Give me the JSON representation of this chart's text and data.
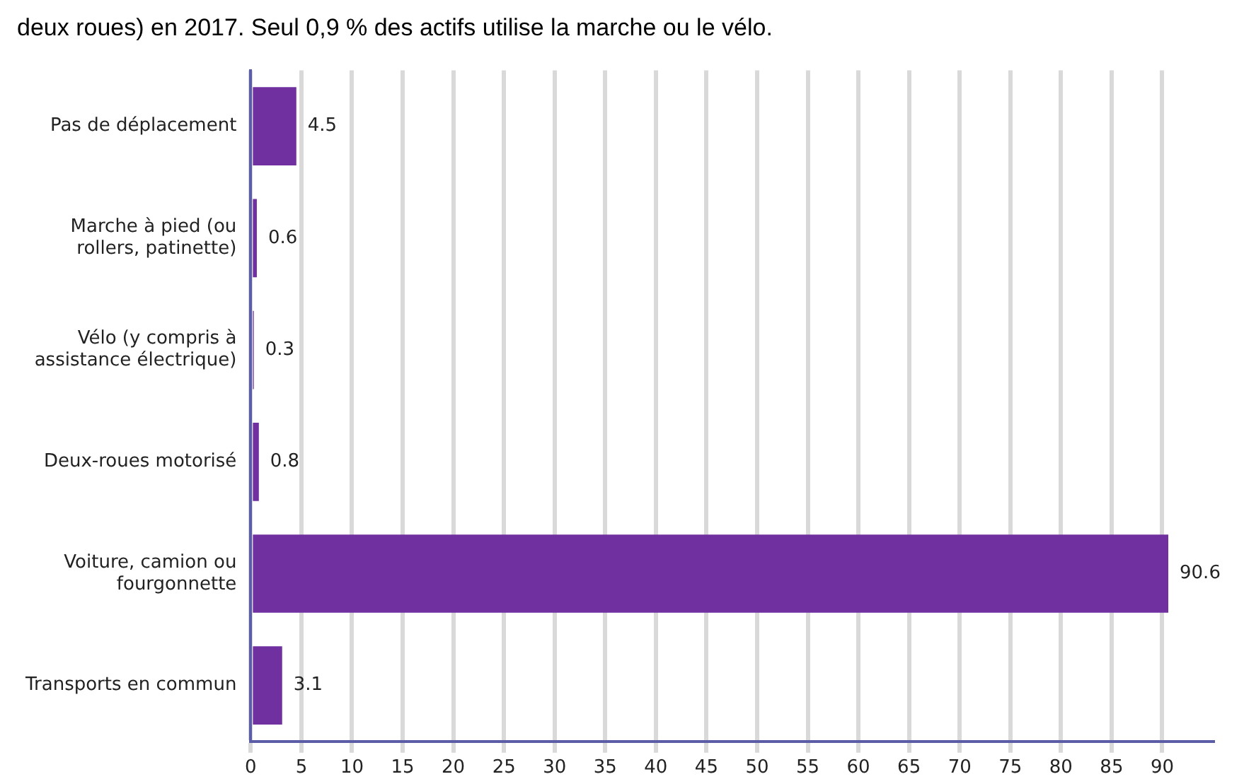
{
  "chart_data": {
    "type": "bar",
    "orientation": "horizontal",
    "annotations": [
      "deux roues) en 2017. Seul 0,9 % des actifs utilise la marche ou le vélo."
    ],
    "categories": [
      "Pas de déplacement",
      "Marche à pied (ou\nrollers, patinette)",
      "Vélo (y compris à\nassistance électrique)",
      "Deux-roues motorisé",
      "Voiture, camion ou\nfourgonnette",
      "Transports en commun"
    ],
    "values": [
      4.5,
      0.6,
      0.3,
      0.8,
      90.6,
      3.1
    ],
    "color": "#7030a0",
    "xlim": [
      0,
      95
    ],
    "xticks": [
      0,
      5,
      10,
      15,
      20,
      25,
      30,
      35,
      40,
      45,
      50,
      55,
      60,
      65,
      70,
      75,
      80,
      85,
      90
    ],
    "grid": "x",
    "legend": false,
    "data_labels": true
  }
}
